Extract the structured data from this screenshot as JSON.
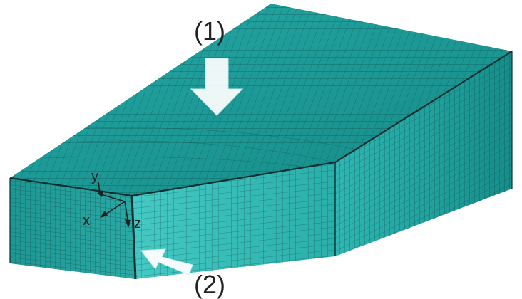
{
  "labels": {
    "label_1": "(1)",
    "label_2": "(2)"
  },
  "axes": {
    "x": "x",
    "y": "y",
    "z": "z"
  },
  "colors": {
    "top_face": "#1f9c9a",
    "right_face": "#1c8f8c",
    "front_right_face": "#2ab3b0",
    "front_left_face": "#239f9c",
    "mesh_line": "#0b3f3e",
    "arrow_fill": "#ffffff",
    "edge": "#0a2f2e"
  },
  "icons": {
    "arrow_1": "down-arrow-icon",
    "arrow_2": "diagonal-arrow-icon",
    "axes": "coordinate-triad-icon"
  }
}
